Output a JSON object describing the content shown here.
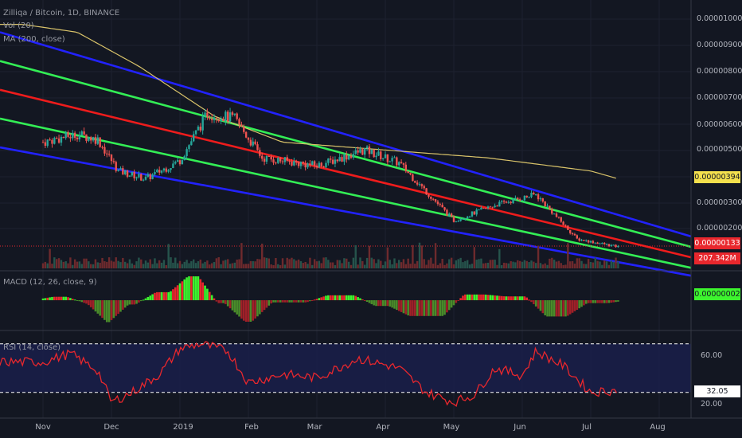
{
  "header": {
    "symbol_title": "Zilliqa / Bitcoin, 1D, BINANCE",
    "volume_indicator": "Vol (20)",
    "ma_indicator": "MA (200, close)",
    "macd_indicator": "MACD (12, 26, close, 9)",
    "rsi_indicator": "RSI (14, close)"
  },
  "price_axis": {
    "labels": [
      "0.00001000",
      "0.00000900",
      "0.00000800",
      "0.00000700",
      "0.00000600",
      "0.00000500",
      "0.00000300",
      "0.00000200"
    ]
  },
  "rsi_axis": {
    "labels": [
      "60.00",
      "20.00"
    ]
  },
  "tags": {
    "ma_value": "0.00000394",
    "last_price": "0.00000133",
    "volume": "207.342M",
    "macd_value": "0.00000002",
    "rsi_value": "32.05"
  },
  "time_axis": {
    "labels": [
      "Nov",
      "Dec",
      "2019",
      "Feb",
      "Mar",
      "Apr",
      "May",
      "Jun",
      "Jul",
      "Aug"
    ]
  },
  "colors": {
    "background": "#131722",
    "outer_channel": "#2222ff",
    "inner_channel": "#33ee55",
    "mid_line": "#ee1c1c",
    "ma_line": "#d9c36a",
    "bull": "#3df52e",
    "bear": "#e8272d",
    "rsi_line": "#e8272d"
  },
  "chart_data": {
    "type": "candlestick",
    "pair": "ZIL/BTC",
    "interval": "1D",
    "exchange": "BINANCE",
    "last_price": 1.33e-06,
    "ma200_last": 3.94e-06,
    "volume_last": "207.342M",
    "macd_last": 2e-08,
    "rsi_last": 32.05,
    "rsi_levels": [
      70,
      30
    ],
    "months": [
      "Nov",
      "Dec",
      "2019",
      "Feb",
      "Mar",
      "Apr",
      "May",
      "Jun",
      "Jul",
      "Aug"
    ],
    "price_path": [
      {
        "m": 0,
        "p": 5.3e-06
      },
      {
        "m": 0.5,
        "p": 5.6e-06
      },
      {
        "m": 0.8,
        "p": 5.4e-06
      },
      {
        "m": 1.1,
        "p": 4.2e-06
      },
      {
        "m": 1.5,
        "p": 3.9e-06
      },
      {
        "m": 2.0,
        "p": 4.6e-06
      },
      {
        "m": 2.4,
        "p": 6.4e-06
      },
      {
        "m": 2.8,
        "p": 6.2e-06
      },
      {
        "m": 3.2,
        "p": 4.7e-06
      },
      {
        "m": 4.0,
        "p": 4.4e-06
      },
      {
        "m": 4.7,
        "p": 5e-06
      },
      {
        "m": 5.2,
        "p": 4.5e-06
      },
      {
        "m": 6.0,
        "p": 2.3e-06
      },
      {
        "m": 6.6,
        "p": 2.9e-06
      },
      {
        "m": 7.2,
        "p": 3.3e-06
      },
      {
        "m": 7.8,
        "p": 1.6e-06
      },
      {
        "m": 8.4,
        "p": 1.3e-06
      }
    ],
    "ma200_path": [
      {
        "m": -0.3,
        "p": 9.8e-06
      },
      {
        "m": 0.5,
        "p": 9.5e-06
      },
      {
        "m": 1.4,
        "p": 8.2e-06
      },
      {
        "m": 2.5,
        "p": 6.3e-06
      },
      {
        "m": 3.5,
        "p": 5.3e-06
      },
      {
        "m": 5.0,
        "p": 5e-06
      },
      {
        "m": 6.5,
        "p": 4.7e-06
      },
      {
        "m": 8.0,
        "p": 4.2e-06
      },
      {
        "m": 8.4,
        "p": 3.9e-06
      }
    ],
    "rsi_path": [
      {
        "m": 0,
        "r": 55
      },
      {
        "m": 0.4,
        "r": 62
      },
      {
        "m": 0.8,
        "r": 48
      },
      {
        "m": 1.0,
        "r": 22
      },
      {
        "m": 1.3,
        "r": 30
      },
      {
        "m": 1.7,
        "r": 45
      },
      {
        "m": 2.0,
        "r": 66
      },
      {
        "m": 2.3,
        "r": 70
      },
      {
        "m": 2.7,
        "r": 64
      },
      {
        "m": 3.0,
        "r": 38
      },
      {
        "m": 3.5,
        "r": 45
      },
      {
        "m": 4.0,
        "r": 42
      },
      {
        "m": 4.6,
        "r": 58
      },
      {
        "m": 5.2,
        "r": 50
      },
      {
        "m": 5.6,
        "r": 30
      },
      {
        "m": 6.0,
        "r": 22
      },
      {
        "m": 6.3,
        "r": 28
      },
      {
        "m": 6.6,
        "r": 50
      },
      {
        "m": 7.0,
        "r": 44
      },
      {
        "m": 7.2,
        "r": 64
      },
      {
        "m": 7.6,
        "r": 52
      },
      {
        "m": 8.0,
        "r": 30
      },
      {
        "m": 8.4,
        "r": 32
      }
    ],
    "channels": [
      {
        "name": "upper-outer",
        "color": "blue",
        "start": 9.5e-06,
        "end": 1.7e-06
      },
      {
        "name": "upper-inner",
        "color": "green",
        "start": 8.4e-06,
        "end": 1.3e-06
      },
      {
        "name": "mid",
        "color": "red",
        "start": 7.3e-06,
        "end": 9e-07
      },
      {
        "name": "lower-inner",
        "color": "green",
        "start": 6.2e-06,
        "end": 5e-07
      },
      {
        "name": "lower-outer",
        "color": "blue",
        "start": 5.1e-06,
        "end": 2e-07
      }
    ]
  }
}
